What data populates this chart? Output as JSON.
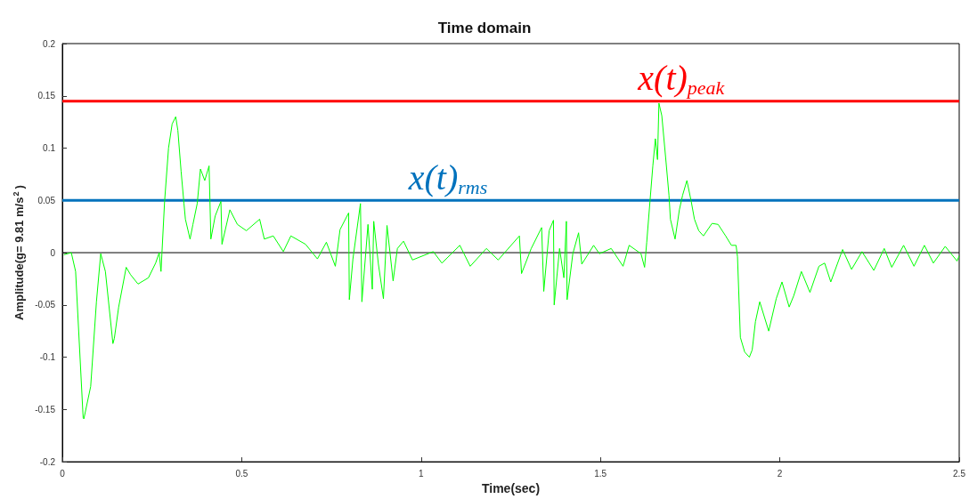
{
  "chart_data": {
    "type": "line",
    "title": "Time domain",
    "xlabel": "Time(sec)",
    "ylabel": "Amplitude(g= 9.81 m/s$^{2}$)",
    "xlim": [
      0,
      2.5
    ],
    "xticks": [
      0,
      0.5,
      1,
      1.5,
      2,
      2.5
    ],
    "ylim": [
      -0.2,
      0.2
    ],
    "yticks": [
      -0.2,
      -0.15,
      -0.1,
      -0.05,
      0,
      0.05,
      0.1,
      0.15,
      0.2
    ],
    "grid": false,
    "marker": "none",
    "line_style": "solid",
    "series": [
      {
        "color": "#00ff00",
        "x": [
          0.004,
          0.025,
          0.037,
          0.058,
          0.06,
          0.079,
          0.095,
          0.107,
          0.12,
          0.141,
          0.145,
          0.157,
          0.178,
          0.19,
          0.211,
          0.24,
          0.26,
          0.27,
          0.275,
          0.285,
          0.296,
          0.306,
          0.316,
          0.322,
          0.331,
          0.339,
          0.343,
          0.356,
          0.364,
          0.376,
          0.385,
          0.397,
          0.409,
          0.414,
          0.426,
          0.442,
          0.445,
          0.467,
          0.488,
          0.513,
          0.55,
          0.563,
          0.588,
          0.616,
          0.637,
          0.678,
          0.711,
          0.736,
          0.761,
          0.774,
          0.798,
          0.8,
          0.81,
          0.831,
          0.835,
          0.852,
          0.864,
          0.868,
          0.881,
          0.895,
          0.905,
          0.922,
          0.934,
          0.951,
          0.976,
          1.034,
          1.058,
          1.108,
          1.137,
          1.182,
          1.215,
          1.274,
          1.28,
          1.307,
          1.336,
          1.342,
          1.357,
          1.369,
          1.371,
          1.386,
          1.398,
          1.405,
          1.407,
          1.423,
          1.439,
          1.448,
          1.481,
          1.497,
          1.53,
          1.563,
          1.58,
          1.613,
          1.623,
          1.629,
          1.638,
          1.646,
          1.653,
          1.659,
          1.663,
          1.671,
          1.683,
          1.691,
          1.695,
          1.708,
          1.72,
          1.729,
          1.741,
          1.753,
          1.762,
          1.774,
          1.787,
          1.811,
          1.828,
          1.849,
          1.865,
          1.878,
          1.882,
          1.89,
          1.902,
          1.915,
          1.923,
          1.932,
          1.944,
          1.969,
          1.99,
          2.006,
          2.026,
          2.039,
          2.06,
          2.084,
          2.109,
          2.125,
          2.142,
          2.175,
          2.2,
          2.229,
          2.262,
          2.291,
          2.312,
          2.345,
          2.374,
          2.403,
          2.428,
          2.461,
          2.494,
          2.5
        ],
        "values": [
          -0.002,
          0,
          -0.018,
          -0.158,
          -0.159,
          -0.128,
          -0.047,
          -0.001,
          -0.018,
          -0.087,
          -0.082,
          -0.052,
          -0.014,
          -0.021,
          -0.03,
          -0.024,
          -0.01,
          0,
          -0.018,
          0.049,
          0.1,
          0.123,
          0.13,
          0.117,
          0.078,
          0.047,
          0.032,
          0.013,
          0.027,
          0.047,
          0.08,
          0.069,
          0.083,
          0.013,
          0.035,
          0.049,
          0.008,
          0.041,
          0.027,
          0.021,
          0.032,
          0.013,
          0.016,
          0.001,
          0.016,
          0.008,
          -0.006,
          0.01,
          -0.013,
          0.022,
          0.038,
          -0.045,
          -0.006,
          0.047,
          -0.047,
          0.027,
          -0.035,
          0.03,
          -0.011,
          -0.044,
          0.026,
          -0.027,
          0.004,
          0.011,
          -0.007,
          0.001,
          -0.01,
          0.007,
          -0.013,
          0.004,
          -0.007,
          0.016,
          -0.02,
          0.004,
          0.024,
          -0.037,
          0.021,
          0.031,
          -0.05,
          0.004,
          -0.024,
          0.03,
          -0.045,
          -0.001,
          0.019,
          -0.011,
          0.007,
          -0.001,
          0.004,
          -0.013,
          0.007,
          -0.001,
          -0.014,
          0.01,
          0.049,
          0.083,
          0.109,
          0.089,
          0.143,
          0.131,
          0.086,
          0.055,
          0.032,
          0.013,
          0.041,
          0.055,
          0.069,
          0.049,
          0.032,
          0.021,
          0.016,
          0.028,
          0.027,
          0.016,
          0.007,
          0.007,
          -0.004,
          -0.081,
          -0.095,
          -0.1,
          -0.093,
          -0.066,
          -0.047,
          -0.075,
          -0.044,
          -0.028,
          -0.052,
          -0.041,
          -0.018,
          -0.038,
          -0.013,
          -0.01,
          -0.028,
          0.003,
          -0.016,
          0.001,
          -0.017,
          0.004,
          -0.014,
          0.007,
          -0.013,
          0.007,
          -0.01,
          0.006,
          -0.008,
          -0.003
        ]
      }
    ],
    "ref_lines": [
      {
        "axis": "y",
        "value": 0,
        "color": "#000000"
      },
      {
        "axis": "y",
        "value": 0.145,
        "label": "x(t)$_{peak}$",
        "color": "#ff0000"
      },
      {
        "axis": "y",
        "value": 0.05,
        "label": "x(t)$_{rms}$",
        "color": "#0072bd"
      }
    ]
  }
}
